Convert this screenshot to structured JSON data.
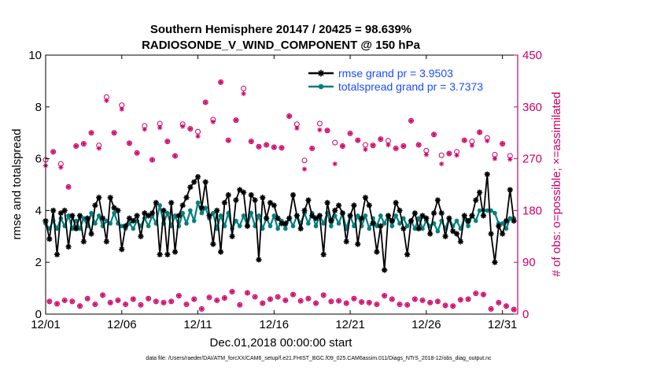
{
  "colors": {
    "rmse": "#000000",
    "totalspread": "#008080",
    "obs_count": "#cc0066",
    "legend_text": "#1a4cff",
    "axis": "#000000"
  },
  "chart_data": {
    "type": "line",
    "title": "Southern Hemisphere 20147 / 20425 = 98.639%",
    "subtitle": "RADIOSONDE_V_WIND_COMPONENT @ 150 hPa",
    "xlabel": "Dec.01,2018 00:00:00 start",
    "ylabel_left": "rmse and totalspread",
    "ylabel_right": "# of obs: o=possible; ×=assimilated",
    "footer": "data file: /Users/raeder/DAI/ATM_forcXX/CAM6_setup/f.e21.FHIST_BGC.f09_025.CAM6assim.011/Diags_NTrS_2018-12/obs_diag_output.nc",
    "x_ticks": [
      "12/01",
      "12/06",
      "12/11",
      "12/16",
      "12/21",
      "12/26",
      "12/31"
    ],
    "xlim": [
      0,
      31
    ],
    "ylim_left": [
      0,
      10
    ],
    "y_ticks_left": [
      "0",
      "2",
      "4",
      "6",
      "8",
      "10"
    ],
    "ylim_right": [
      0,
      450
    ],
    "y_ticks_right": [
      "0",
      "90",
      "180",
      "270",
      "360",
      "450"
    ],
    "grid": false,
    "legend_position": "top-right",
    "series": [
      {
        "name": "rmse grand pr = 3.9503",
        "axis": "left",
        "x": [
          0,
          0.25,
          0.5,
          0.75,
          1,
          1.25,
          1.5,
          1.75,
          2,
          2.25,
          2.5,
          2.75,
          3,
          3.25,
          3.5,
          3.75,
          4,
          4.25,
          4.5,
          4.75,
          5,
          5.25,
          5.5,
          5.75,
          6,
          6.25,
          6.5,
          6.75,
          7,
          7.25,
          7.5,
          7.75,
          8,
          8.25,
          8.5,
          8.75,
          9,
          9.25,
          9.5,
          9.75,
          10,
          10.25,
          10.5,
          10.75,
          11,
          11.25,
          11.5,
          11.75,
          12,
          12.25,
          12.5,
          12.75,
          13,
          13.25,
          13.5,
          13.75,
          14,
          14.25,
          14.5,
          14.75,
          15,
          15.25,
          15.5,
          15.75,
          16,
          16.25,
          16.5,
          16.75,
          17,
          17.25,
          17.5,
          17.75,
          18,
          18.25,
          18.5,
          18.75,
          19,
          19.25,
          19.5,
          19.75,
          20,
          20.25,
          20.5,
          20.75,
          21,
          21.25,
          21.5,
          21.75,
          22,
          22.25,
          22.5,
          22.75,
          23,
          23.25,
          23.5,
          23.75,
          24,
          24.25,
          24.5,
          24.75,
          25,
          25.25,
          25.5,
          25.75,
          26,
          26.25,
          26.5,
          26.75,
          27,
          27.25,
          27.5,
          27.75,
          28,
          28.25,
          28.5,
          28.75,
          29,
          29.25,
          29.5,
          29.75,
          30,
          30.25,
          30.5,
          30.75
        ],
        "values": [
          3.6,
          2.9,
          4.0,
          2.3,
          3.9,
          4.0,
          2.6,
          3.8,
          3.3,
          3.8,
          2.8,
          3.7,
          3.1,
          4.2,
          4.5,
          3.7,
          2.8,
          4.5,
          4.1,
          4.0,
          2.5,
          3.4,
          3.7,
          3.6,
          3.8,
          3.0,
          3.9,
          3.8,
          3.9,
          4.3,
          2.3,
          4.0,
          2.3,
          4.3,
          2.4,
          3.8,
          4.2,
          4.5,
          4.9,
          5.1,
          5.3,
          4.1,
          5.1,
          3.8,
          2.7,
          4.0,
          2.4,
          4.3,
          4.6,
          3.0,
          4.4,
          4.8,
          4.7,
          3.4,
          4.6,
          4.4,
          2.1,
          4.5,
          3.7,
          4.3,
          4.2,
          3.7,
          3.5,
          3.5,
          3.7,
          4.6,
          3.8,
          3.3,
          4.0,
          4.4,
          3.8,
          3.7,
          3.8,
          2.3,
          4.3,
          3.6,
          4.0,
          4.2,
          3.9,
          2.8,
          3.8,
          4.2,
          2.7,
          3.7,
          4.5,
          4.2,
          3.5,
          2.4,
          3.4,
          1.7,
          3.8,
          3.6,
          4.3,
          4.0,
          3.3,
          2.3,
          3.6,
          3.9,
          3.3,
          3.8,
          3.7,
          3.1,
          3.9,
          4.4,
          3.9,
          3.0,
          3.7,
          3.2,
          3.1,
          2.8,
          3.8,
          3.6,
          3.8,
          4.4,
          4.7,
          3.8,
          5.4,
          3.1,
          2.0,
          3.4,
          3.1,
          3.6,
          4.8,
          3.6
        ]
      },
      {
        "name": "totalspread grand pr = 3.7373",
        "axis": "left",
        "x": [
          0,
          0.25,
          0.5,
          0.75,
          1,
          1.25,
          1.5,
          1.75,
          2,
          2.25,
          2.5,
          2.75,
          3,
          3.25,
          3.5,
          3.75,
          4,
          4.25,
          4.5,
          4.75,
          5,
          5.25,
          5.5,
          5.75,
          6,
          6.25,
          6.5,
          6.75,
          7,
          7.25,
          7.5,
          7.75,
          8,
          8.25,
          8.5,
          8.75,
          9,
          9.25,
          9.5,
          9.75,
          10,
          10.25,
          10.5,
          10.75,
          11,
          11.25,
          11.5,
          11.75,
          12,
          12.25,
          12.5,
          12.75,
          13,
          13.25,
          13.5,
          13.75,
          14,
          14.25,
          14.5,
          14.75,
          15,
          15.25,
          15.5,
          15.75,
          16,
          16.25,
          16.5,
          16.75,
          17,
          17.25,
          17.5,
          17.75,
          18,
          18.25,
          18.5,
          18.75,
          19,
          19.25,
          19.5,
          19.75,
          20,
          20.25,
          20.5,
          20.75,
          21,
          21.25,
          21.5,
          21.75,
          22,
          22.25,
          22.5,
          22.75,
          23,
          23.25,
          23.5,
          23.75,
          24,
          24.25,
          24.5,
          24.75,
          25,
          25.25,
          25.5,
          25.75,
          26,
          26.25,
          26.5,
          26.75,
          27,
          27.25,
          27.5,
          27.75,
          28,
          28.25,
          28.5,
          28.75,
          29,
          29.25,
          29.5,
          29.75,
          30,
          30.25,
          30.5,
          30.75
        ],
        "values": [
          3.5,
          3.3,
          3.6,
          3.3,
          3.7,
          3.4,
          3.8,
          3.3,
          3.6,
          3.3,
          3.7,
          3.4,
          3.9,
          3.5,
          3.8,
          3.4,
          3.6,
          3.5,
          3.9,
          3.5,
          3.4,
          3.3,
          3.5,
          3.3,
          3.6,
          3.4,
          3.7,
          3.4,
          3.8,
          3.5,
          4.2,
          3.5,
          3.9,
          3.4,
          3.8,
          3.4,
          3.9,
          3.5,
          4.0,
          3.6,
          4.3,
          3.9,
          4.1,
          3.7,
          3.9,
          3.3,
          3.8,
          3.4,
          3.9,
          3.3,
          3.6,
          3.4,
          3.8,
          3.4,
          3.9,
          3.4,
          3.8,
          3.3,
          3.7,
          3.4,
          3.8,
          3.3,
          3.6,
          3.3,
          3.7,
          3.4,
          3.8,
          3.5,
          3.9,
          3.5,
          3.9,
          3.4,
          3.8,
          3.5,
          3.9,
          3.4,
          3.8,
          3.5,
          3.9,
          3.3,
          3.8,
          3.4,
          3.8,
          3.4,
          3.8,
          3.3,
          3.7,
          3.4,
          3.8,
          3.5,
          3.8,
          3.4,
          3.8,
          3.5,
          3.7,
          3.4,
          3.6,
          3.3,
          3.7,
          3.3,
          3.6,
          3.4,
          3.5,
          3.2,
          3.6,
          3.3,
          3.7,
          3.4,
          3.6,
          3.3,
          3.7,
          3.4,
          3.8,
          3.6,
          4.0,
          4.0,
          4.0,
          4.0,
          3.9,
          3.5,
          3.5,
          3.3,
          3.7,
          3.7
        ]
      }
    ],
    "obs_possible": {
      "axis": "right",
      "marker": "o",
      "x": [
        0,
        0.25,
        0.5,
        0.75,
        1,
        1.25,
        1.5,
        1.75,
        2,
        2.25,
        2.5,
        2.75,
        3,
        3.25,
        3.5,
        3.75,
        4,
        4.25,
        4.5,
        4.75,
        5,
        5.25,
        5.5,
        5.75,
        6,
        6.25,
        6.5,
        6.75,
        7,
        7.25,
        7.5,
        7.75,
        8,
        8.25,
        8.5,
        8.75,
        9,
        9.25,
        9.5,
        9.75,
        10,
        10.25,
        10.5,
        10.75,
        11,
        11.25,
        11.5,
        11.75,
        12,
        12.25,
        12.5,
        12.75,
        13,
        13.25,
        13.5,
        13.75,
        14,
        14.25,
        14.5,
        14.75,
        15,
        15.25,
        15.5,
        15.75,
        16,
        16.25,
        16.5,
        16.75,
        17,
        17.25,
        17.5,
        17.75,
        18,
        18.25,
        18.5,
        18.75,
        19,
        19.25,
        19.5,
        19.75,
        20,
        20.25,
        20.5,
        20.75,
        21,
        21.25,
        21.5,
        21.75,
        22,
        22.25,
        22.5,
        22.75,
        23,
        23.25,
        23.5,
        23.75,
        24,
        24.25,
        24.5,
        24.75,
        25,
        25.25,
        25.5,
        25.75,
        26,
        26.25,
        26.5,
        26.75,
        27,
        27.25,
        27.5,
        27.75,
        28,
        28.25,
        28.5,
        28.75,
        29,
        29.25,
        29.5,
        29.75,
        30,
        30.25,
        30.5,
        30.75
      ],
      "values": [
        268,
        22,
        282,
        18,
        261,
        24,
        221,
        22,
        292,
        14,
        296,
        27,
        315,
        17,
        293,
        33,
        377,
        20,
        315,
        24,
        363,
        17,
        297,
        26,
        280,
        16,
        327,
        27,
        268,
        22,
        331,
        20,
        300,
        22,
        275,
        32,
        330,
        17,
        322,
        26,
        317,
        9,
        368,
        29,
        338,
        24,
        403,
        28,
        302,
        39,
        337,
        16,
        392,
        37,
        300,
        30,
        291,
        19,
        294,
        26,
        290,
        30,
        289,
        24,
        344,
        34,
        330,
        23,
        267,
        27,
        288,
        19,
        331,
        33,
        319,
        22,
        298,
        23,
        292,
        19,
        314,
        27,
        302,
        21,
        294,
        20,
        293,
        17,
        304,
        32,
        301,
        26,
        288,
        17,
        292,
        16,
        336,
        26,
        294,
        24,
        284,
        20,
        312,
        22,
        276,
        15,
        279,
        14,
        282,
        25,
        302,
        26,
        300,
        36,
        316,
        34,
        306,
        9,
        277,
        20,
        296,
        14,
        275,
        8
      ]
    },
    "obs_assimilated": {
      "axis": "right",
      "marker": "*",
      "x": [
        0,
        0.25,
        0.5,
        0.75,
        1,
        1.25,
        1.5,
        1.75,
        2,
        2.25,
        2.5,
        2.75,
        3,
        3.25,
        3.5,
        3.75,
        4,
        4.25,
        4.5,
        4.75,
        5,
        5.25,
        5.5,
        5.75,
        6,
        6.25,
        6.5,
        6.75,
        7,
        7.25,
        7.5,
        7.75,
        8,
        8.25,
        8.5,
        8.75,
        9,
        9.25,
        9.5,
        9.75,
        10,
        10.25,
        10.5,
        10.75,
        11,
        11.25,
        11.5,
        11.75,
        12,
        12.25,
        12.5,
        12.75,
        13,
        13.25,
        13.5,
        13.75,
        14,
        14.25,
        14.5,
        14.75,
        15,
        15.25,
        15.5,
        15.75,
        16,
        16.25,
        16.5,
        16.75,
        17,
        17.25,
        17.5,
        17.75,
        18,
        18.25,
        18.5,
        18.75,
        19,
        19.25,
        19.5,
        19.75,
        20,
        20.25,
        20.5,
        20.75,
        21,
        21.25,
        21.5,
        21.75,
        22,
        22.25,
        22.5,
        22.75,
        23,
        23.25,
        23.5,
        23.75,
        24,
        24.25,
        24.5,
        24.75,
        25,
        25.25,
        25.5,
        25.75,
        26,
        26.25,
        26.5,
        26.75,
        27,
        27.25,
        27.5,
        27.75,
        28,
        28.25,
        28.5,
        28.75,
        29,
        29.25,
        29.5,
        29.75,
        30,
        30.25,
        30.5,
        30.75
      ],
      "values": [
        258,
        22,
        282,
        18,
        255,
        24,
        221,
        22,
        292,
        14,
        296,
        27,
        315,
        17,
        288,
        33,
        371,
        20,
        315,
        24,
        356,
        17,
        297,
        26,
        280,
        16,
        321,
        27,
        268,
        22,
        324,
        20,
        300,
        22,
        275,
        32,
        326,
        17,
        322,
        26,
        309,
        9,
        368,
        29,
        334,
        24,
        403,
        28,
        302,
        39,
        337,
        16,
        383,
        37,
        300,
        30,
        291,
        19,
        294,
        26,
        290,
        30,
        289,
        24,
        344,
        34,
        323,
        23,
        252,
        27,
        288,
        19,
        320,
        33,
        319,
        22,
        261,
        23,
        292,
        19,
        314,
        27,
        302,
        21,
        286,
        20,
        293,
        17,
        304,
        32,
        294,
        26,
        288,
        17,
        292,
        16,
        336,
        26,
        294,
        24,
        277,
        20,
        312,
        22,
        261,
        15,
        279,
        14,
        276,
        25,
        302,
        26,
        293,
        36,
        316,
        34,
        301,
        9,
        270,
        20,
        296,
        14,
        269,
        8
      ]
    }
  }
}
